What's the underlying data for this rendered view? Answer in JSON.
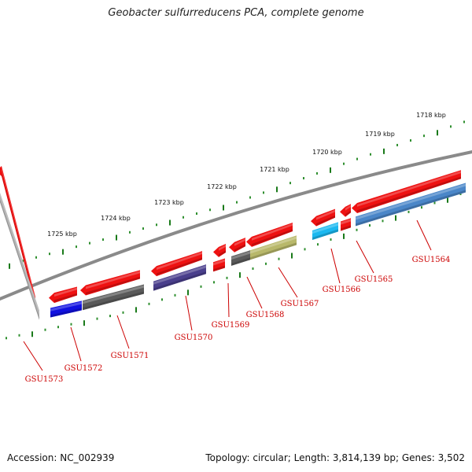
{
  "title": "Geobacter sulfurreducens PCA, complete genome",
  "footer": {
    "accession": "Accession: NC_002939",
    "summary": "Topology: circular; Length: 3,814,139 bp; Genes: 3,502"
  },
  "colors": {
    "backbone": "#8a8a8a",
    "tick_major": "#1a7a1a",
    "tick_minor": "#2f8f2f",
    "gene_strand": "#ee1111",
    "label": "#cc0000"
  },
  "scale_labels": [
    "1718 kbp",
    "1719 kbp",
    "1720 kbp",
    "1721 kbp",
    "1722 kbp",
    "1723 kbp",
    "1724 kbp",
    "1725 kbp"
  ],
  "genes": [
    {
      "id": "GSU1564",
      "strand": "-",
      "color": "#4a86c8"
    },
    {
      "id": "GSU1565",
      "strand": "-",
      "color": "#ee1111"
    },
    {
      "id": "GSU1566",
      "strand": "-",
      "color": "#1ab8f0"
    },
    {
      "id": "GSU1567",
      "strand": "-",
      "color": "#b8b86a"
    },
    {
      "id": "GSU1568",
      "strand": "-",
      "color": "#5a5a5a"
    },
    {
      "id": "GSU1569",
      "strand": "-",
      "color": "#ee1111"
    },
    {
      "id": "GSU1570",
      "strand": "-",
      "color": "#4a3f8c"
    },
    {
      "id": "GSU1571",
      "strand": "-",
      "color": "#5a5a5a"
    },
    {
      "id": "GSU1572",
      "strand": "-",
      "color": "#1010e0"
    },
    {
      "id": "GSU1573",
      "strand": "-",
      "color": "#b0b0b0"
    }
  ]
}
